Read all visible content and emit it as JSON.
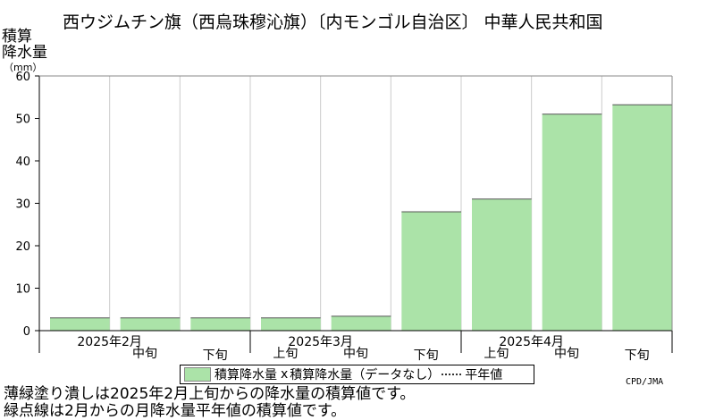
{
  "title": "西ウジムチン旗（西烏珠穆沁旗）〔内モンゴル自治区〕 中華人民共和国",
  "ylabel_line1": "積算",
  "ylabel_line2": "降水量",
  "ylabel_unit": "（mm）",
  "legend": {
    "bar_label": "積算降水量",
    "missing_marker": "x",
    "missing_label": "積算降水量（データなし）",
    "normal_label": "平年値"
  },
  "credit": "CPD/JMA",
  "notes": [
    "薄緑塗り潰しは2025年2月上旬からの降水量の積算値です。",
    "緑点線は2月からの月降水量平年値の積算値です。"
  ],
  "colors": {
    "fill": "#abe3a8",
    "grid": "#cccccc",
    "axis": "#000000"
  },
  "chart_data": {
    "type": "area",
    "title": "西ウジムチン旗（西烏珠穆沁旗）〔内モンゴル自治区〕 中華人民共和国",
    "ylabel": "積算降水量（mm）",
    "ylim": [
      0,
      60
    ],
    "yticks": [
      0,
      10,
      20,
      30,
      40,
      50,
      60
    ],
    "grid": "vertical",
    "months": [
      "2025年2月",
      "2025年3月",
      "2025年4月"
    ],
    "periods": [
      "上旬",
      "中旬",
      "下旬",
      "上旬",
      "中旬",
      "下旬",
      "上旬",
      "中旬",
      "下旬"
    ],
    "period_labels_shown": [
      "",
      "中旬",
      "下旬",
      "上旬",
      "中旬",
      "下旬",
      "上旬",
      "中旬",
      "下旬"
    ],
    "series": [
      {
        "values": [
          3.0,
          3.0,
          3.0,
          3.0,
          3.4,
          28.0,
          31.0,
          51.0,
          53.2
        ]
      }
    ]
  }
}
